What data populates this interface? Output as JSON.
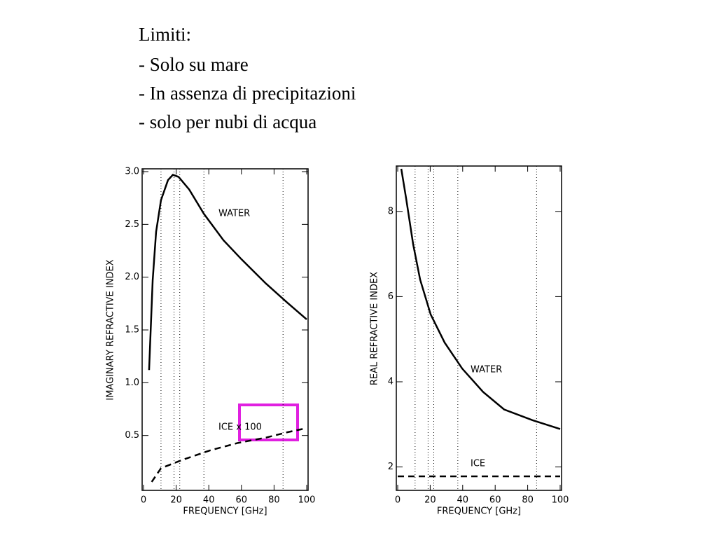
{
  "slide": {
    "lines": [
      "Limiti:",
      "- Solo su mare",
      "- In assenza di precipitazioni",
      "- solo per nubi di acqua"
    ]
  },
  "chart_data": [
    {
      "type": "line",
      "ylabel": "IMAGINARY REFRACTIVE INDEX",
      "xlabel": "FREQUENCY [GHz]",
      "xlim": [
        0,
        100
      ],
      "xticks": [
        0,
        20,
        40,
        60,
        80,
        100
      ],
      "ylim": [
        0,
        3.0
      ],
      "yticks": [
        0.5,
        {
          "value": 1,
          "label": "1.0"
        },
        1.5,
        {
          "value": 2,
          "label": "2.0"
        },
        2.5,
        {
          "value": 3,
          "label": "3.0"
        }
      ],
      "vlines": [
        10.7,
        18.7,
        22.2,
        37,
        85.5
      ],
      "series": [
        {
          "name": "WATER",
          "color": "#000000",
          "dashed": false,
          "x": [
            3.4,
            5.6,
            7.7,
            10.7,
            15,
            18,
            21.5,
            28,
            37,
            49,
            60,
            75,
            88,
            100
          ],
          "values": [
            1.12,
            1.97,
            2.43,
            2.73,
            2.92,
            2.97,
            2.95,
            2.83,
            2.6,
            2.35,
            2.17,
            1.94,
            1.76,
            1.6
          ]
        },
        {
          "name": "ICE x 100",
          "color": "#000000",
          "dashed": true,
          "x": [
            5,
            10.7,
            24,
            41,
            58,
            75,
            88,
            100
          ],
          "values": [
            0.06,
            0.19,
            0.27,
            0.36,
            0.43,
            0.48,
            0.53,
            0.57
          ]
        }
      ]
    },
    {
      "type": "line",
      "ylabel": "REAL REFRACTIVE INDEX",
      "xlabel": "FREQUENCY [GHz]",
      "xlim": [
        0,
        100
      ],
      "xticks": [
        0,
        20,
        40,
        60,
        80,
        100
      ],
      "ylim": [
        1.5,
        9
      ],
      "yticks": [
        2,
        4,
        6,
        8
      ],
      "vlines": [
        10.7,
        18.7,
        22.2,
        37,
        85.5
      ],
      "series": [
        {
          "name": "WATER",
          "color": "#000000",
          "dashed": false,
          "x": [
            2.2,
            5.2,
            9.5,
            13.8,
            20.3,
            28.9,
            39.7,
            52.6,
            65.5,
            82.8,
            100
          ],
          "values": [
            9.0,
            8.3,
            7.23,
            6.4,
            5.58,
            4.92,
            4.31,
            3.76,
            3.35,
            3.1,
            2.89
          ]
        },
        {
          "name": "ICE",
          "color": "#000000",
          "dashed": true,
          "x": [
            0,
            100
          ],
          "values": [
            1.78,
            1.78
          ]
        }
      ]
    }
  ]
}
